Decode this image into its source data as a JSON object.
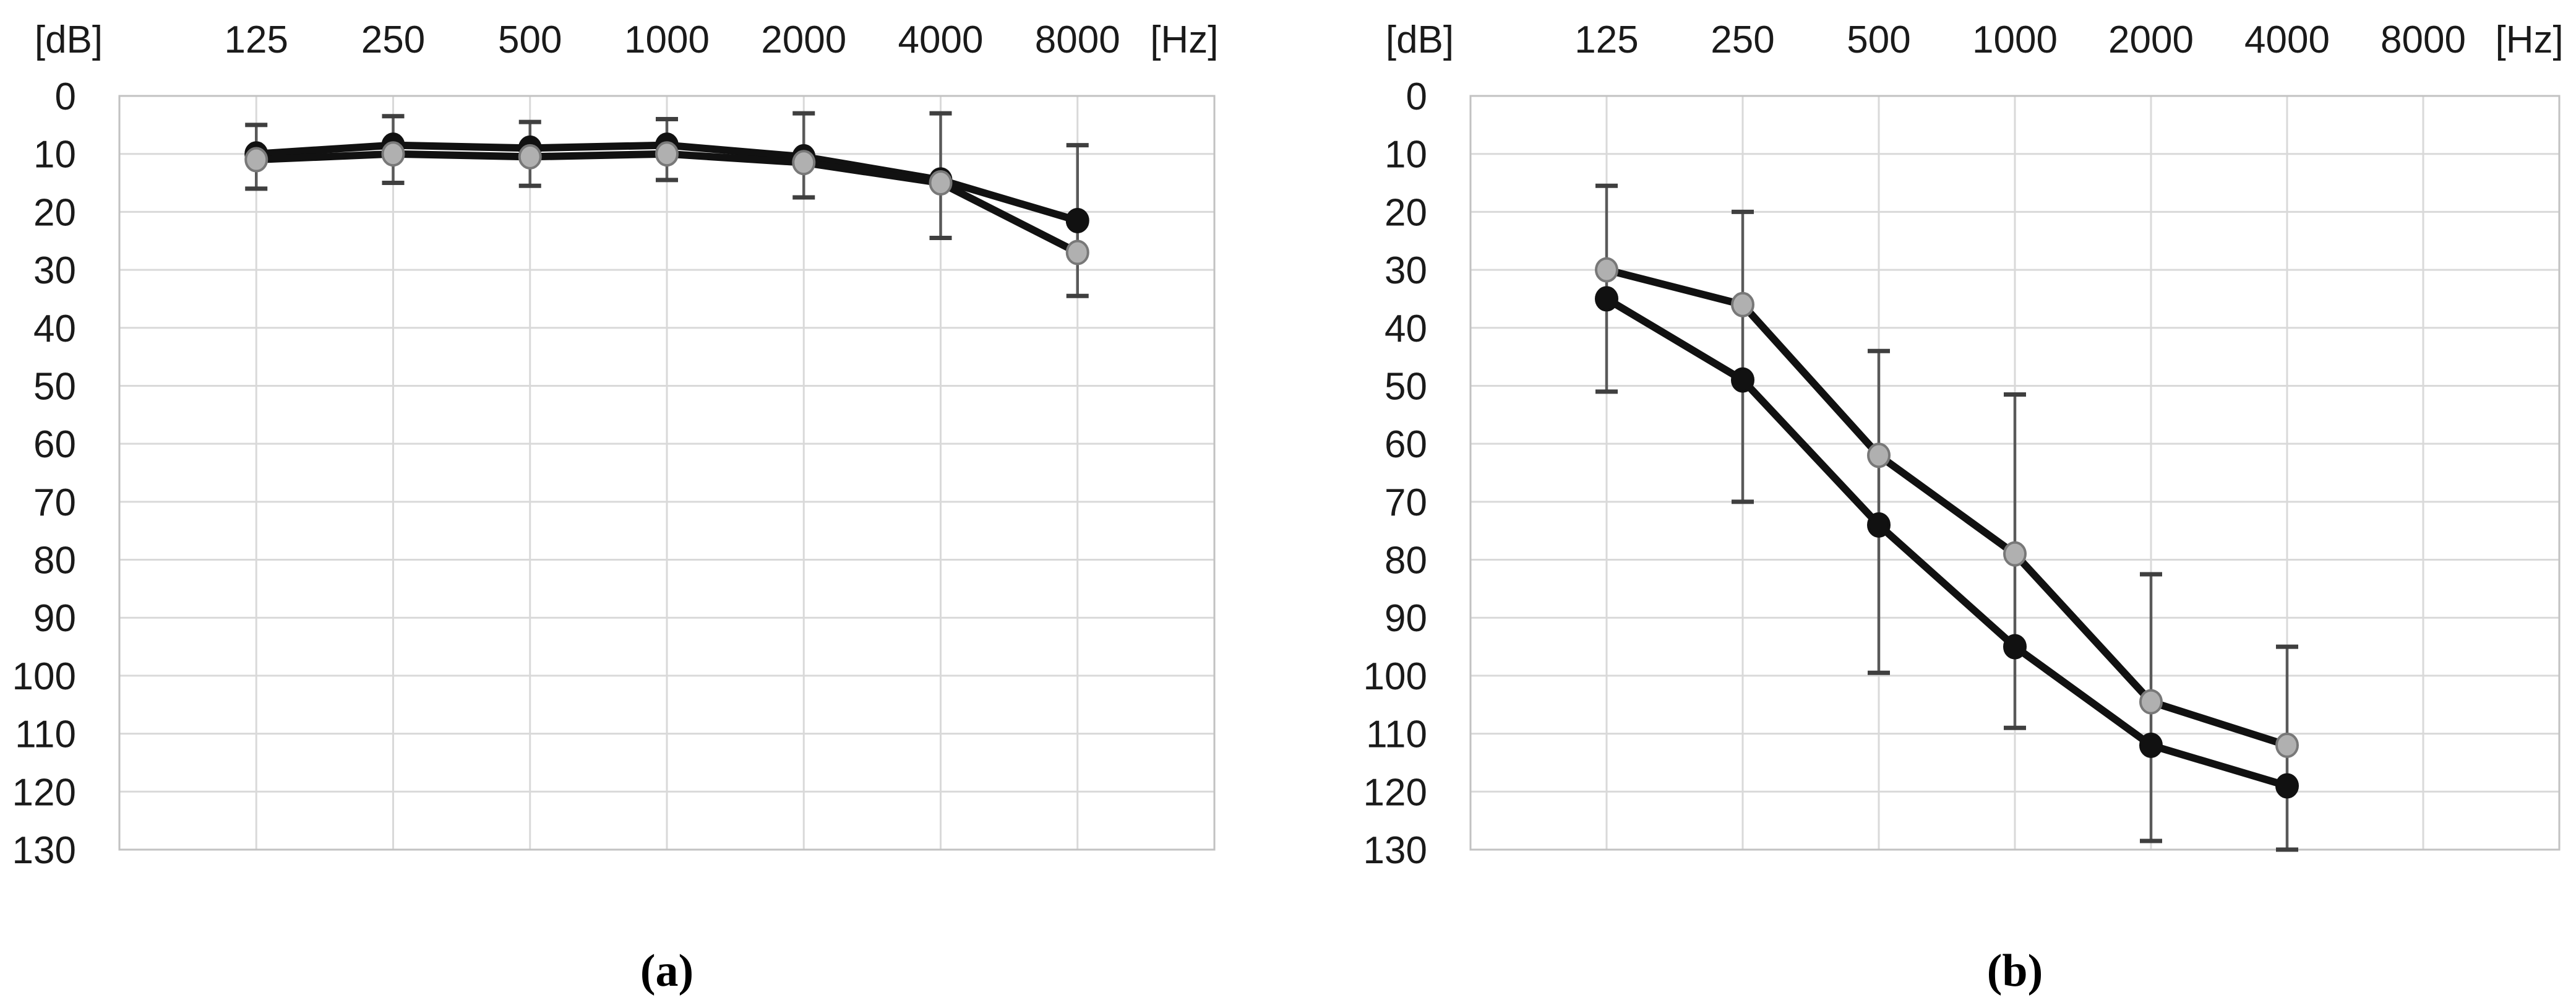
{
  "figure": {
    "background": "#ffffff",
    "description": "Two-panel pure-tone audiogram line charts with error bars"
  },
  "colors": {
    "grid": "#d9d9d9",
    "plot_border": "#c2c2c2",
    "series_line": "#111111",
    "error_line": "#595959",
    "error_cap": "#3f3f3f",
    "text": "#1a1a1a"
  },
  "chart_data": [
    {
      "type": "line",
      "panel_id": "a",
      "caption": "(a)",
      "y_axis_unit": "[dB]",
      "x_axis_unit": "[Hz]",
      "x_categories": [
        "125",
        "250",
        "500",
        "1000",
        "2000",
        "4000",
        "8000"
      ],
      "y_ticks": [
        0,
        10,
        20,
        30,
        40,
        50,
        60,
        70,
        80,
        90,
        100,
        110,
        120,
        130
      ],
      "ylim": [
        0,
        130
      ],
      "y_axis_inverted": true,
      "grid": true,
      "legend": "none",
      "series": [
        {
          "name": "black-circle-series",
          "marker": "circle",
          "marker_fill": "#111111",
          "marker_stroke": "#111111",
          "line_color": "#111111",
          "values": [
            10,
            8.5,
            9,
            8.5,
            10.5,
            14.5,
            21.5
          ]
        },
        {
          "name": "gray-circle-series",
          "marker": "circle",
          "marker_fill": "#b0b0b0",
          "marker_stroke": "#787878",
          "line_color": "#111111",
          "values": [
            11,
            10,
            10.5,
            10,
            11.5,
            15,
            27
          ]
        }
      ],
      "error_bars": [
        {
          "x": "125",
          "upper": 5,
          "lower": 16
        },
        {
          "x": "250",
          "upper": 3.5,
          "lower": 15
        },
        {
          "x": "500",
          "upper": 4.5,
          "lower": 15.5
        },
        {
          "x": "1000",
          "upper": 4,
          "lower": 14.5
        },
        {
          "x": "2000",
          "upper": 3,
          "lower": 17.5
        },
        {
          "x": "4000",
          "upper": 3,
          "lower": 24.5
        },
        {
          "x": "8000",
          "upper": 8.5,
          "lower": 34.5
        }
      ]
    },
    {
      "type": "line",
      "panel_id": "b",
      "caption": "(b)",
      "y_axis_unit": "[dB]",
      "x_axis_unit": "[Hz]",
      "x_categories": [
        "125",
        "250",
        "500",
        "1000",
        "2000",
        "4000",
        "8000"
      ],
      "y_ticks": [
        0,
        10,
        20,
        30,
        40,
        50,
        60,
        70,
        80,
        90,
        100,
        110,
        120,
        130
      ],
      "ylim": [
        0,
        130
      ],
      "y_axis_inverted": true,
      "grid": true,
      "legend": "none",
      "series": [
        {
          "name": "black-circle-series",
          "marker": "circle",
          "marker_fill": "#111111",
          "marker_stroke": "#111111",
          "line_color": "#111111",
          "values": [
            35,
            49,
            74,
            95,
            112,
            119,
            null
          ]
        },
        {
          "name": "gray-circle-series",
          "marker": "circle",
          "marker_fill": "#b0b0b0",
          "marker_stroke": "#787878",
          "line_color": "#111111",
          "values": [
            30,
            36,
            62,
            79,
            104.5,
            112,
            null
          ]
        }
      ],
      "error_bars": [
        {
          "x": "125",
          "upper": 15.5,
          "lower": 51
        },
        {
          "x": "250",
          "upper": 20,
          "lower": 70
        },
        {
          "x": "500",
          "upper": 44,
          "lower": 99.5
        },
        {
          "x": "1000",
          "upper": 51.5,
          "lower": 109
        },
        {
          "x": "2000",
          "upper": 82.5,
          "lower": 128.5
        },
        {
          "x": "4000",
          "upper": 95,
          "lower": 130
        }
      ]
    }
  ]
}
